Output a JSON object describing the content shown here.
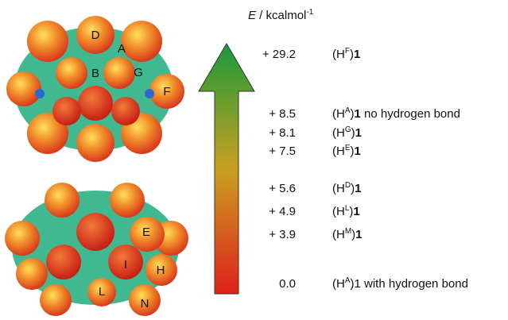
{
  "axis_label": {
    "symbol": "E",
    "unit": " / kcalmol",
    "exponent": "-1"
  },
  "top_molecule": {
    "labels": [
      "D",
      "A",
      "B",
      "G",
      "F"
    ]
  },
  "bottom_molecule": {
    "labels": [
      "E",
      "I",
      "H",
      "L",
      "N"
    ]
  },
  "levels": [
    {
      "energy": "+ 29.2",
      "prefix": "(H",
      "site": "F",
      "suffix": ")",
      "compound": "1"
    },
    {
      "energy": "+ 8.5",
      "prefix": "(H",
      "site": "A",
      "suffix": ")",
      "compound": "1",
      "note": " no hydrogen bond"
    },
    {
      "energy": "+ 8.1",
      "prefix": "(H",
      "site": "G",
      "suffix": ")",
      "compound": "1"
    },
    {
      "energy": "+ 7.5",
      "prefix": "(H",
      "site": "E",
      "suffix": ")",
      "compound": "1"
    },
    {
      "energy": "+ 5.6",
      "prefix": "(H",
      "site": "D",
      "suffix": ")",
      "compound": "1"
    },
    {
      "energy": "+ 4.9",
      "prefix": "(H",
      "site": "L",
      "suffix": ")",
      "compound": "1"
    },
    {
      "energy": "+ 3.9",
      "prefix": "(H",
      "site": "M",
      "suffix": ")",
      "compound": "1"
    },
    {
      "energy": "0.0",
      "prefix": "(H",
      "site": "A",
      "suffix": ")1",
      "note": " with hydrogen bond"
    }
  ]
}
